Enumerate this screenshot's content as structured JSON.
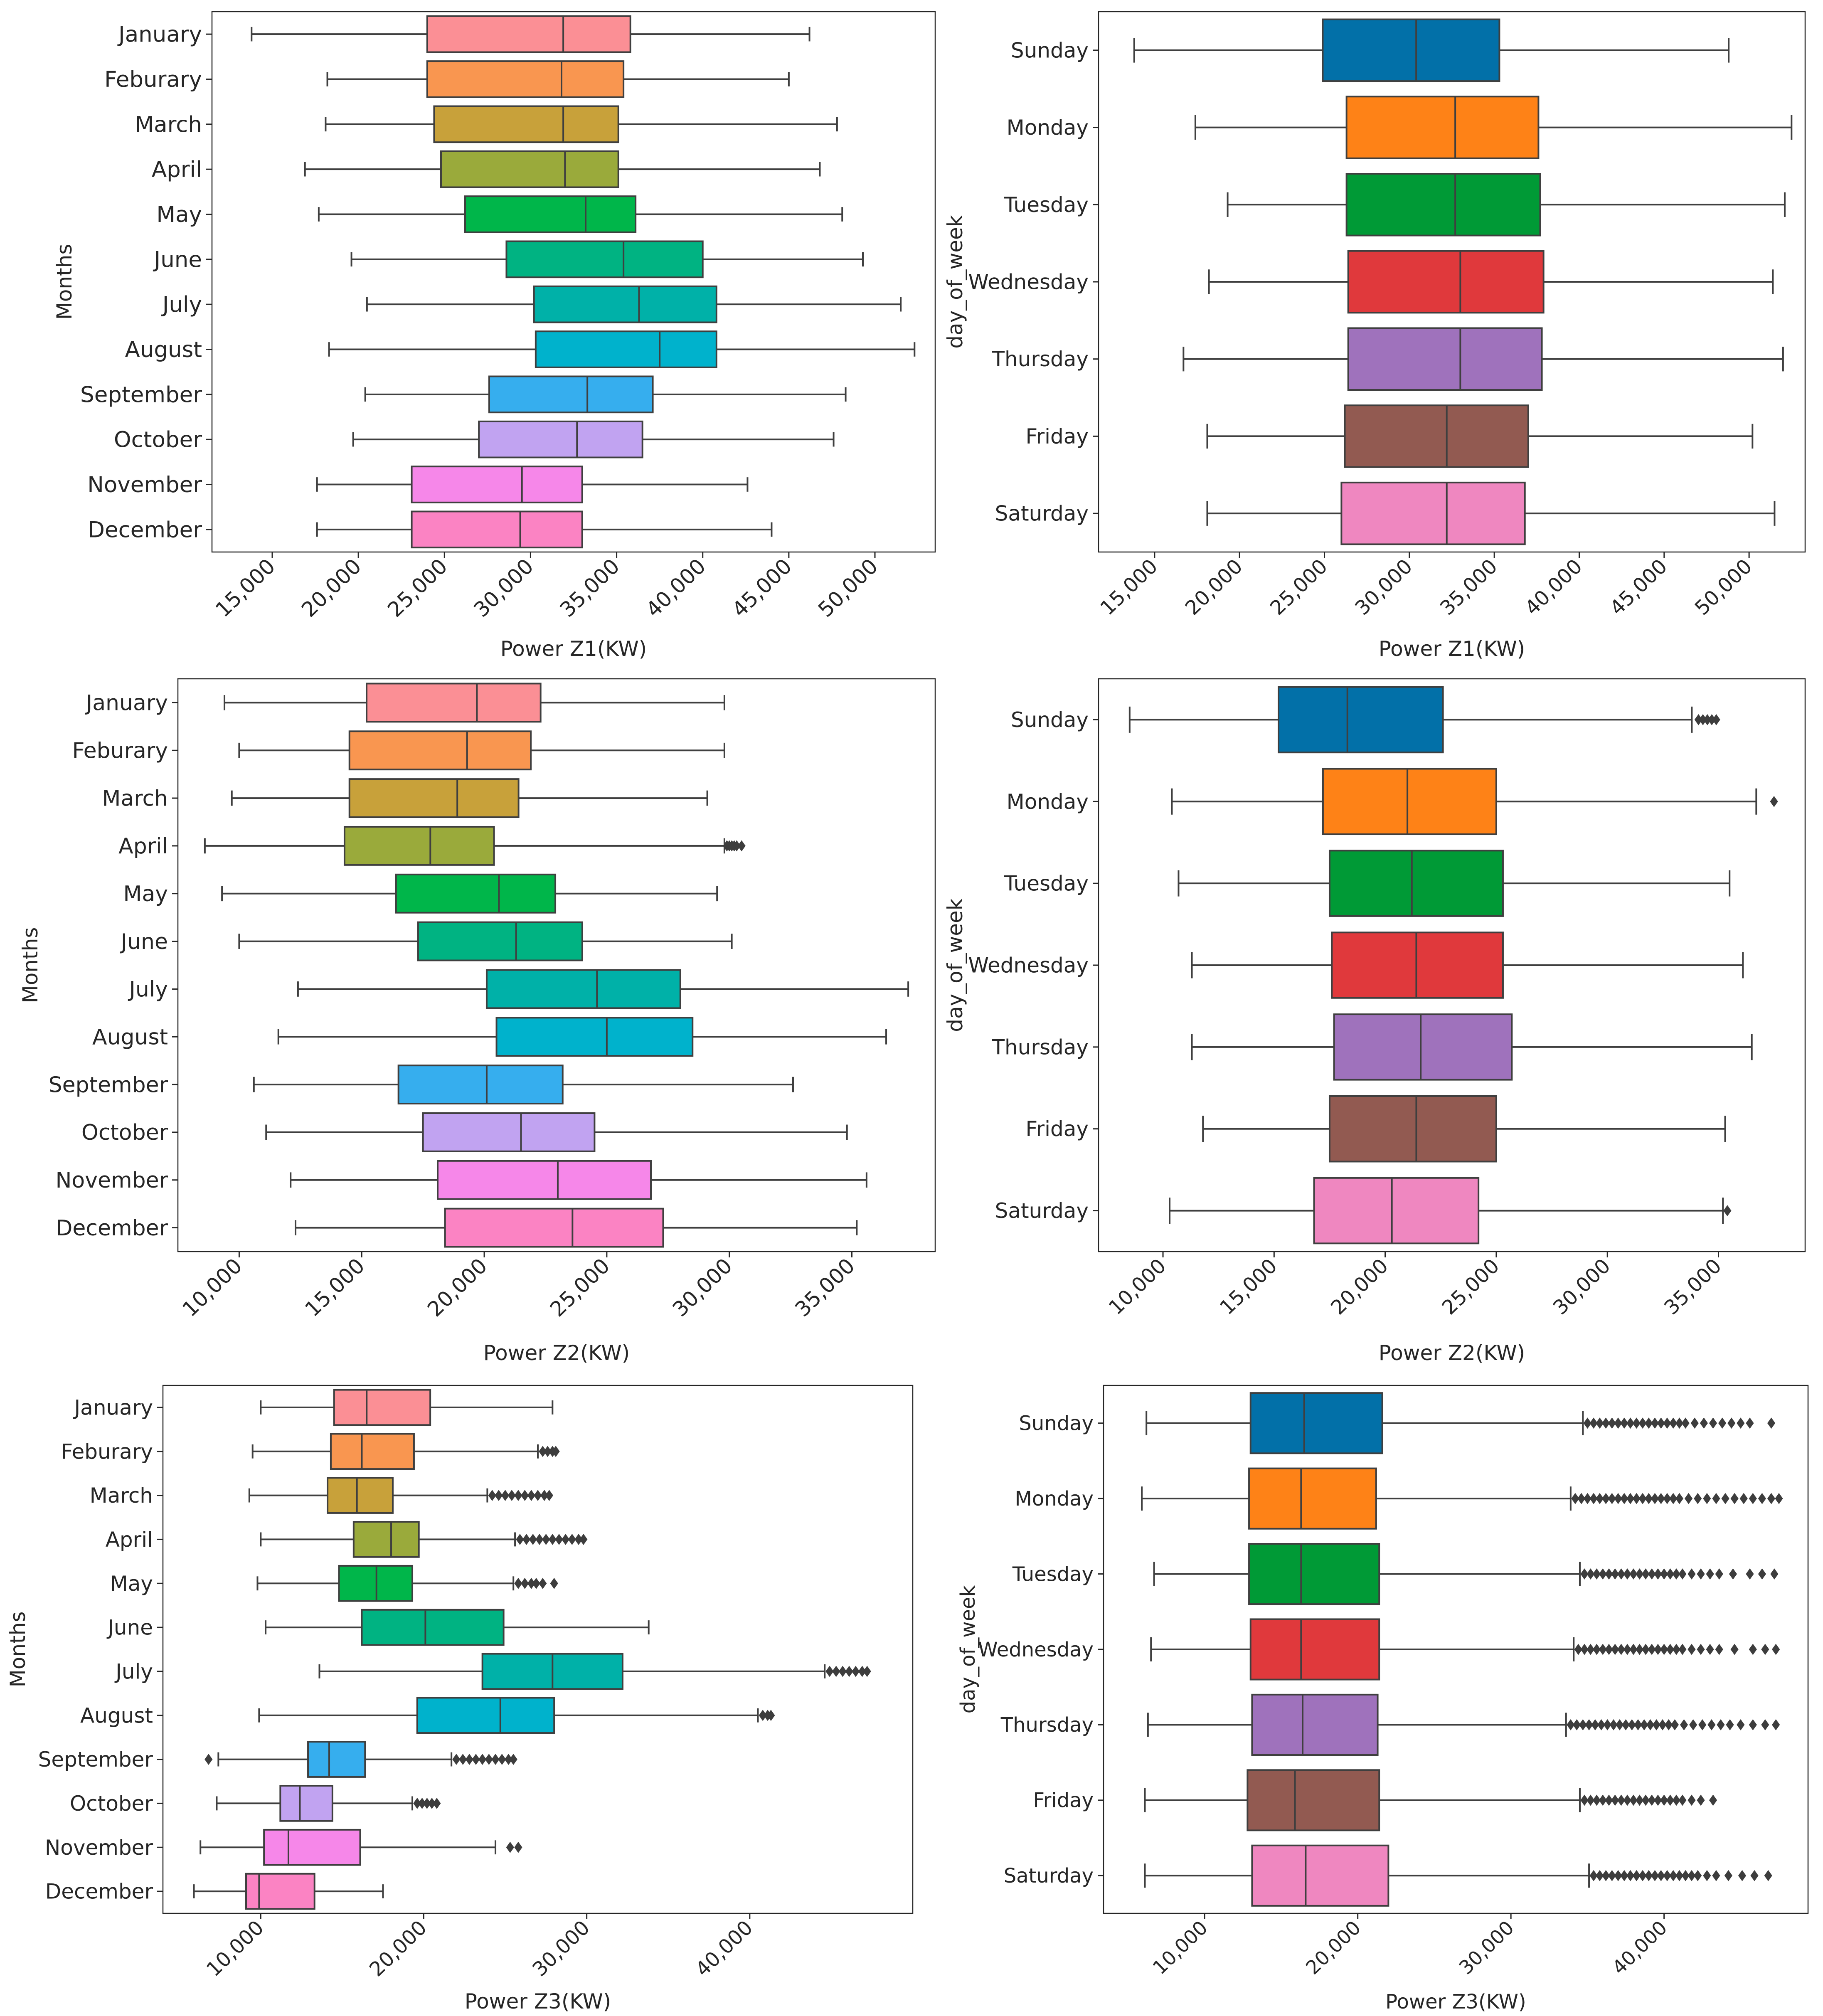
{
  "figure": {
    "background": "#ffffff"
  },
  "palette": {
    "months": [
      "#fb8f95",
      "#f99650",
      "#c8a13a",
      "#9aaa3b",
      "#00b64a",
      "#00b382",
      "#00b1a8",
      "#00b2cc",
      "#36aeee",
      "#c1a3f1",
      "#f687e9",
      "#fb83c3"
    ],
    "days": [
      "#0270a8",
      "#fe8217",
      "#009a36",
      "#e0393c",
      "#9f72bc",
      "#925a51",
      "#ef87c0"
    ]
  },
  "chart_data": [
    {
      "type": "boxplot",
      "orientation": "horizontal",
      "palette": "months",
      "xlabel": "Power Z1(KW)",
      "ylabel": "Months",
      "xlim": [
        11500,
        53500
      ],
      "xticks": [
        15000,
        20000,
        25000,
        30000,
        35000,
        40000,
        45000,
        50000
      ],
      "xtick_labels": [
        "15,000",
        "20,000",
        "25,000",
        "30,000",
        "35,000",
        "40,000",
        "45,000",
        "50,000"
      ],
      "categories": [
        "January",
        "Feburary",
        "March",
        "April",
        "May",
        "June",
        "July",
        "August",
        "September",
        "October",
        "November",
        "December"
      ],
      "boxes": [
        {
          "whislo": 13800,
          "q1": 24000,
          "med": 31900,
          "q3": 35800,
          "whishi": 46200,
          "fliers": []
        },
        {
          "whislo": 18200,
          "q1": 24000,
          "med": 31800,
          "q3": 35400,
          "whishi": 45000,
          "fliers": []
        },
        {
          "whislo": 18100,
          "q1": 24400,
          "med": 31900,
          "q3": 35100,
          "whishi": 47800,
          "fliers": []
        },
        {
          "whislo": 16900,
          "q1": 24800,
          "med": 32000,
          "q3": 35100,
          "whishi": 46800,
          "fliers": []
        },
        {
          "whislo": 17700,
          "q1": 26200,
          "med": 33200,
          "q3": 36100,
          "whishi": 48100,
          "fliers": []
        },
        {
          "whislo": 19600,
          "q1": 28600,
          "med": 35400,
          "q3": 40000,
          "whishi": 49300,
          "fliers": []
        },
        {
          "whislo": 20500,
          "q1": 30200,
          "med": 36300,
          "q3": 40800,
          "whishi": 51500,
          "fliers": []
        },
        {
          "whislo": 18300,
          "q1": 30300,
          "med": 37500,
          "q3": 40800,
          "whishi": 52300,
          "fliers": []
        },
        {
          "whislo": 20400,
          "q1": 27600,
          "med": 33300,
          "q3": 37100,
          "whishi": 48300,
          "fliers": []
        },
        {
          "whislo": 19700,
          "q1": 27000,
          "med": 32700,
          "q3": 36500,
          "whishi": 47600,
          "fliers": []
        },
        {
          "whislo": 17600,
          "q1": 23100,
          "med": 29500,
          "q3": 33000,
          "whishi": 42600,
          "fliers": []
        },
        {
          "whislo": 17600,
          "q1": 23100,
          "med": 29400,
          "q3": 33000,
          "whishi": 44000,
          "fliers": []
        }
      ]
    },
    {
      "type": "boxplot",
      "orientation": "horizontal",
      "palette": "days",
      "xlabel": "Power Z1(KW)",
      "ylabel": "day_of_week",
      "xlim": [
        11700,
        53300
      ],
      "xticks": [
        15000,
        20000,
        25000,
        30000,
        35000,
        40000,
        45000,
        50000
      ],
      "xtick_labels": [
        "15,000",
        "20,000",
        "25,000",
        "30,000",
        "35,000",
        "40,000",
        "45,000",
        "50,000"
      ],
      "categories": [
        "Sunday",
        "Monday",
        "Tuesday",
        "Wednesday",
        "Thursday",
        "Friday",
        "Saturday"
      ],
      "boxes": [
        {
          "whislo": 13800,
          "q1": 24900,
          "med": 30400,
          "q3": 35300,
          "whishi": 48800,
          "fliers": []
        },
        {
          "whislo": 17400,
          "q1": 26300,
          "med": 32700,
          "q3": 37600,
          "whishi": 52500,
          "fliers": []
        },
        {
          "whislo": 19300,
          "q1": 26300,
          "med": 32700,
          "q3": 37700,
          "whishi": 52100,
          "fliers": []
        },
        {
          "whislo": 18200,
          "q1": 26400,
          "med": 33000,
          "q3": 37900,
          "whishi": 51400,
          "fliers": []
        },
        {
          "whislo": 16700,
          "q1": 26400,
          "med": 33000,
          "q3": 37800,
          "whishi": 52000,
          "fliers": []
        },
        {
          "whislo": 18100,
          "q1": 26200,
          "med": 32200,
          "q3": 37000,
          "whishi": 50200,
          "fliers": []
        },
        {
          "whislo": 18100,
          "q1": 26000,
          "med": 32200,
          "q3": 36800,
          "whishi": 51500,
          "fliers": []
        }
      ]
    },
    {
      "type": "boxplot",
      "orientation": "horizontal",
      "palette": "months",
      "xlabel": "Power Z2(KW)",
      "ylabel": "Months",
      "xlim": [
        7500,
        38400
      ],
      "xticks": [
        10000,
        15000,
        20000,
        25000,
        30000,
        35000
      ],
      "xtick_labels": [
        "10,000",
        "15,000",
        "20,000",
        "25,000",
        "30,000",
        "35,000"
      ],
      "categories": [
        "January",
        "Feburary",
        "March",
        "April",
        "May",
        "June",
        "July",
        "August",
        "September",
        "October",
        "November",
        "December"
      ],
      "boxes": [
        {
          "whislo": 9400,
          "q1": 15200,
          "med": 19700,
          "q3": 22300,
          "whishi": 29800,
          "fliers": []
        },
        {
          "whislo": 10000,
          "q1": 14500,
          "med": 19300,
          "q3": 21900,
          "whishi": 29800,
          "fliers": []
        },
        {
          "whislo": 9700,
          "q1": 14500,
          "med": 18900,
          "q3": 21400,
          "whishi": 29100,
          "fliers": []
        },
        {
          "whislo": 8600,
          "q1": 14300,
          "med": 17800,
          "q3": 20400,
          "whishi": 29800,
          "fliers": [
            29900,
            30000,
            30100,
            30200,
            30300,
            30500
          ]
        },
        {
          "whislo": 9300,
          "q1": 16400,
          "med": 20600,
          "q3": 22900,
          "whishi": 29500,
          "fliers": []
        },
        {
          "whislo": 10000,
          "q1": 17300,
          "med": 21300,
          "q3": 24000,
          "whishi": 30100,
          "fliers": []
        },
        {
          "whislo": 12400,
          "q1": 20100,
          "med": 24600,
          "q3": 28000,
          "whishi": 37300,
          "fliers": []
        },
        {
          "whislo": 11600,
          "q1": 20500,
          "med": 25000,
          "q3": 28500,
          "whishi": 36400,
          "fliers": []
        },
        {
          "whislo": 10600,
          "q1": 16500,
          "med": 20100,
          "q3": 23200,
          "whishi": 32600,
          "fliers": []
        },
        {
          "whislo": 11100,
          "q1": 17500,
          "med": 21500,
          "q3": 24500,
          "whishi": 34800,
          "fliers": []
        },
        {
          "whislo": 12100,
          "q1": 18100,
          "med": 23000,
          "q3": 26800,
          "whishi": 35600,
          "fliers": []
        },
        {
          "whislo": 12300,
          "q1": 18400,
          "med": 23600,
          "q3": 27300,
          "whishi": 35200,
          "fliers": []
        }
      ]
    },
    {
      "type": "boxplot",
      "orientation": "horizontal",
      "palette": "days",
      "xlabel": "Power Z2(KW)",
      "ylabel": "day_of_week",
      "xlim": [
        7100,
        38900
      ],
      "xticks": [
        10000,
        15000,
        20000,
        25000,
        30000,
        35000
      ],
      "xtick_labels": [
        "10,000",
        "15,000",
        "20,000",
        "25,000",
        "30,000",
        "35,000"
      ],
      "categories": [
        "Sunday",
        "Monday",
        "Tuesday",
        "Wednesday",
        "Thursday",
        "Friday",
        "Saturday"
      ],
      "boxes": [
        {
          "whislo": 8500,
          "q1": 15200,
          "med": 18300,
          "q3": 22600,
          "whishi": 33800,
          "fliers": [
            34100,
            34300,
            34500,
            34700,
            34900
          ]
        },
        {
          "whislo": 10400,
          "q1": 17200,
          "med": 21000,
          "q3": 25000,
          "whishi": 36700,
          "fliers": [
            37500
          ]
        },
        {
          "whislo": 10700,
          "q1": 17500,
          "med": 21200,
          "q3": 25300,
          "whishi": 35500,
          "fliers": []
        },
        {
          "whislo": 11300,
          "q1": 17600,
          "med": 21400,
          "q3": 25300,
          "whishi": 36100,
          "fliers": []
        },
        {
          "whislo": 11300,
          "q1": 17700,
          "med": 21600,
          "q3": 25700,
          "whishi": 36500,
          "fliers": []
        },
        {
          "whislo": 11800,
          "q1": 17500,
          "med": 21400,
          "q3": 25000,
          "whishi": 35300,
          "fliers": []
        },
        {
          "whislo": 10300,
          "q1": 16800,
          "med": 20300,
          "q3": 24200,
          "whishi": 35200,
          "fliers": [
            35400
          ]
        }
      ]
    },
    {
      "type": "boxplot",
      "orientation": "horizontal",
      "palette": "months",
      "xlabel": "Power Z3(KW)",
      "ylabel": "Months",
      "xlim": [
        4000,
        50000
      ],
      "xticks": [
        10000,
        20000,
        30000,
        40000
      ],
      "xtick_labels": [
        "10,000",
        "20,000",
        "30,000",
        "40,000"
      ],
      "categories": [
        "January",
        "Feburary",
        "March",
        "April",
        "May",
        "June",
        "July",
        "August",
        "September",
        "October",
        "November",
        "December"
      ],
      "boxes": [
        {
          "whislo": 10000,
          "q1": 14500,
          "med": 16500,
          "q3": 20400,
          "whishi": 27900,
          "fliers": []
        },
        {
          "whislo": 9500,
          "q1": 14300,
          "med": 16200,
          "q3": 19400,
          "whishi": 27000,
          "fliers": [
            27300,
            27600,
            27900,
            28100
          ]
        },
        {
          "whislo": 9300,
          "q1": 14100,
          "med": 15900,
          "q3": 18100,
          "whishi": 23900,
          "fliers": [
            24200,
            24600,
            25000,
            25400,
            25800,
            26200,
            26600,
            27000,
            27400,
            27700
          ]
        },
        {
          "whislo": 10000,
          "q1": 15700,
          "med": 18000,
          "q3": 19700,
          "whishi": 25600,
          "fliers": [
            25900,
            26300,
            26700,
            27100,
            27500,
            27900,
            28300,
            28700,
            29100,
            29500,
            29800
          ]
        },
        {
          "whislo": 9800,
          "q1": 14800,
          "med": 17100,
          "q3": 19300,
          "whishi": 25500,
          "fliers": [
            25800,
            26200,
            26600,
            26900,
            27300,
            28000
          ]
        },
        {
          "whislo": 10300,
          "q1": 16200,
          "med": 20100,
          "q3": 24900,
          "whishi": 33800,
          "fliers": []
        },
        {
          "whislo": 13600,
          "q1": 23600,
          "med": 27900,
          "q3": 32200,
          "whishi": 44600,
          "fliers": [
            44900,
            45300,
            45700,
            46100,
            46500,
            46900,
            47200
          ]
        },
        {
          "whislo": 9900,
          "q1": 19600,
          "med": 24700,
          "q3": 28000,
          "whishi": 40500,
          "fliers": [
            40800,
            41100,
            41300
          ]
        },
        {
          "whislo": 7400,
          "q1": 12900,
          "med": 14200,
          "q3": 16400,
          "whishi": 21700,
          "fliers": [
            6800,
            22000,
            22400,
            22800,
            23200,
            23600,
            24000,
            24400,
            24800,
            25200,
            25500
          ]
        },
        {
          "whislo": 7300,
          "q1": 11200,
          "med": 12400,
          "q3": 14400,
          "whishi": 19300,
          "fliers": [
            19600,
            19900,
            20200,
            20500,
            20800
          ]
        },
        {
          "whislo": 6300,
          "q1": 10200,
          "med": 11700,
          "q3": 16100,
          "whishi": 24400,
          "fliers": [
            25300,
            25800
          ]
        },
        {
          "whislo": 5900,
          "q1": 9100,
          "med": 9900,
          "q3": 13300,
          "whishi": 17500,
          "fliers": []
        }
      ]
    },
    {
      "type": "boxplot",
      "orientation": "horizontal",
      "palette": "days",
      "xlabel": "Power Z3(KW)",
      "ylabel": "day_of_week",
      "xlim": [
        3400,
        49400
      ],
      "xticks": [
        10000,
        20000,
        30000,
        40000
      ],
      "xtick_labels": [
        "10,000",
        "20,000",
        "30,000",
        "40,000"
      ],
      "categories": [
        "Sunday",
        "Monday",
        "Tuesday",
        "Wednesday",
        "Thursday",
        "Friday",
        "Saturday"
      ],
      "boxes": [
        {
          "whislo": 6200,
          "q1": 13000,
          "med": 16500,
          "q3": 21600,
          "whishi": 34700,
          "fliers": [
            35000,
            35400,
            35800,
            36200,
            36600,
            37000,
            37400,
            37800,
            38200,
            38600,
            39000,
            39400,
            39800,
            40200,
            40600,
            41000,
            41400,
            42000,
            42600,
            43200,
            43800,
            44400,
            45000,
            45600,
            47000
          ]
        },
        {
          "whislo": 5900,
          "q1": 12900,
          "med": 16300,
          "q3": 21200,
          "whishi": 33900,
          "fliers": [
            34200,
            34600,
            35000,
            35400,
            35800,
            36200,
            36600,
            37000,
            37400,
            37800,
            38200,
            38600,
            39000,
            39400,
            39800,
            40200,
            40600,
            41000,
            41600,
            42200,
            42800,
            43400,
            44000,
            44600,
            45200,
            45800,
            46400,
            47000,
            47500
          ]
        },
        {
          "whislo": 6700,
          "q1": 12900,
          "med": 16300,
          "q3": 21400,
          "whishi": 34500,
          "fliers": [
            34800,
            35200,
            35600,
            36000,
            36400,
            36800,
            37200,
            37600,
            38000,
            38400,
            38800,
            39200,
            39600,
            40000,
            40400,
            40800,
            41200,
            41800,
            42400,
            43000,
            43600,
            44500,
            45600,
            46400,
            47200
          ]
        },
        {
          "whislo": 6500,
          "q1": 13000,
          "med": 16300,
          "q3": 21400,
          "whishi": 34100,
          "fliers": [
            34400,
            34800,
            35200,
            35600,
            36000,
            36400,
            36800,
            37200,
            37600,
            38000,
            38400,
            38800,
            39200,
            39600,
            40000,
            40400,
            40800,
            41200,
            41800,
            42400,
            43000,
            43600,
            44600,
            45800,
            46600,
            47300
          ]
        },
        {
          "whislo": 6300,
          "q1": 13100,
          "med": 16400,
          "q3": 21300,
          "whishi": 33600,
          "fliers": [
            33900,
            34300,
            34700,
            35100,
            35500,
            35900,
            36300,
            36700,
            37100,
            37500,
            37900,
            38300,
            38700,
            39100,
            39500,
            39900,
            40300,
            40700,
            41300,
            41900,
            42500,
            43100,
            43700,
            44300,
            45000,
            45800,
            46600,
            47300
          ]
        },
        {
          "whislo": 6100,
          "q1": 12800,
          "med": 15900,
          "q3": 21400,
          "whishi": 34500,
          "fliers": [
            34800,
            35200,
            35600,
            36000,
            36400,
            36800,
            37200,
            37600,
            38000,
            38400,
            38800,
            39200,
            39600,
            40000,
            40400,
            40800,
            41200,
            41800,
            42400,
            43200
          ]
        },
        {
          "whislo": 6100,
          "q1": 13100,
          "med": 16600,
          "q3": 22000,
          "whishi": 35100,
          "fliers": [
            35400,
            35800,
            36200,
            36600,
            37000,
            37400,
            37800,
            38200,
            38600,
            39000,
            39400,
            39800,
            40200,
            40600,
            41000,
            41400,
            41800,
            42200,
            42800,
            43400,
            44200,
            45100,
            45900,
            46800
          ]
        }
      ]
    }
  ]
}
